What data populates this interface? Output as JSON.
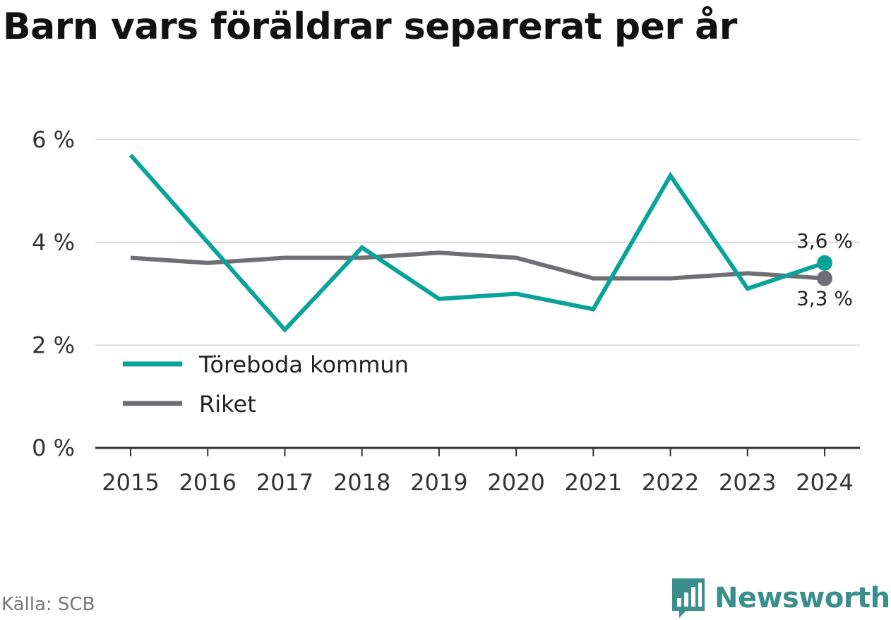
{
  "chart_data": {
    "type": "line",
    "title": "Barn vars föräldrar separerat per år",
    "x": [
      "2015",
      "2016",
      "2017",
      "2018",
      "2019",
      "2020",
      "2021",
      "2022",
      "2023",
      "2024"
    ],
    "ylim": [
      0,
      6
    ],
    "yticks": [
      0,
      2,
      4,
      6
    ],
    "ytick_labels": [
      "0 %",
      "2 %",
      "4 %",
      "6 %"
    ],
    "grid": true,
    "legend_position": "bottom-left",
    "series": [
      {
        "name": "Töreboda kommun",
        "color": "#0aa39a",
        "values": [
          5.7,
          4.0,
          2.3,
          3.9,
          2.9,
          3.0,
          2.7,
          5.3,
          3.1,
          3.6
        ],
        "end_label": "3,6 %"
      },
      {
        "name": "Riket",
        "color": "#6e6e74",
        "values": [
          3.7,
          3.6,
          3.7,
          3.7,
          3.8,
          3.7,
          3.3,
          3.3,
          3.4,
          3.3
        ],
        "end_label": "3,3 %"
      }
    ]
  },
  "footer": {
    "source": "Källa: SCB",
    "brand": "Newsworthy",
    "brand_icon": "bar-chart-icon",
    "brand_color": "#3a8f8c"
  }
}
